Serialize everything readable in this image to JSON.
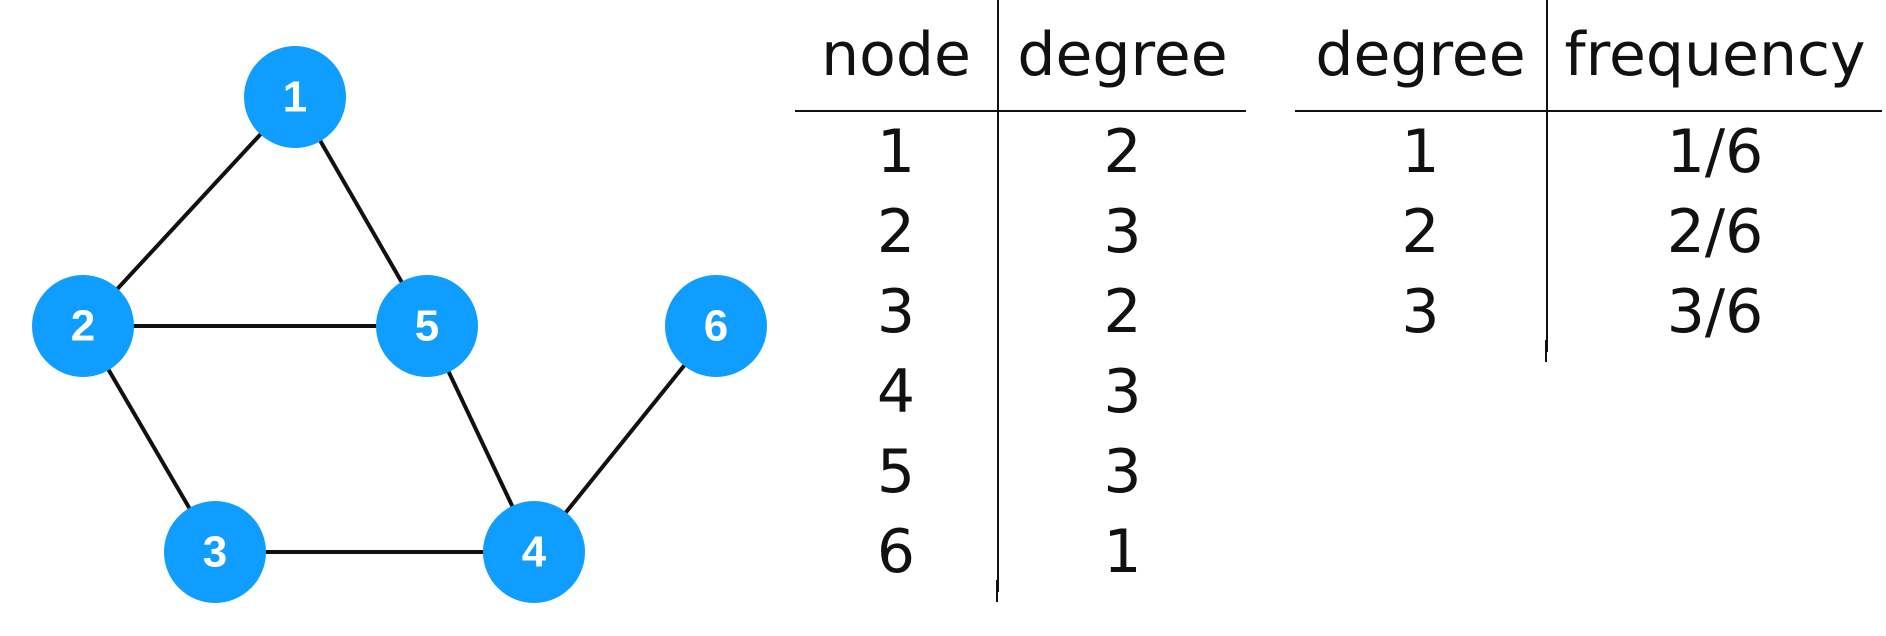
{
  "graph": {
    "nodes": [
      {
        "id": "1",
        "label": "1"
      },
      {
        "id": "2",
        "label": "2"
      },
      {
        "id": "3",
        "label": "3"
      },
      {
        "id": "4",
        "label": "4"
      },
      {
        "id": "5",
        "label": "5"
      },
      {
        "id": "6",
        "label": "6"
      }
    ],
    "edges": [
      [
        "1",
        "2"
      ],
      [
        "1",
        "5"
      ],
      [
        "2",
        "5"
      ],
      [
        "2",
        "3"
      ],
      [
        "3",
        "4"
      ],
      [
        "4",
        "5"
      ],
      [
        "4",
        "6"
      ]
    ],
    "node_color": "#0f9eff",
    "edge_color": "#111111"
  },
  "degree_table": {
    "headers": [
      "node",
      "degree"
    ],
    "rows": [
      [
        "1",
        "2"
      ],
      [
        "2",
        "3"
      ],
      [
        "3",
        "2"
      ],
      [
        "4",
        "3"
      ],
      [
        "5",
        "3"
      ],
      [
        "6",
        "1"
      ]
    ]
  },
  "frequency_table": {
    "headers": [
      "degree",
      "frequency"
    ],
    "rows": [
      [
        "1",
        "1/6"
      ],
      [
        "2",
        "2/6"
      ],
      [
        "3",
        "3/6"
      ]
    ]
  }
}
